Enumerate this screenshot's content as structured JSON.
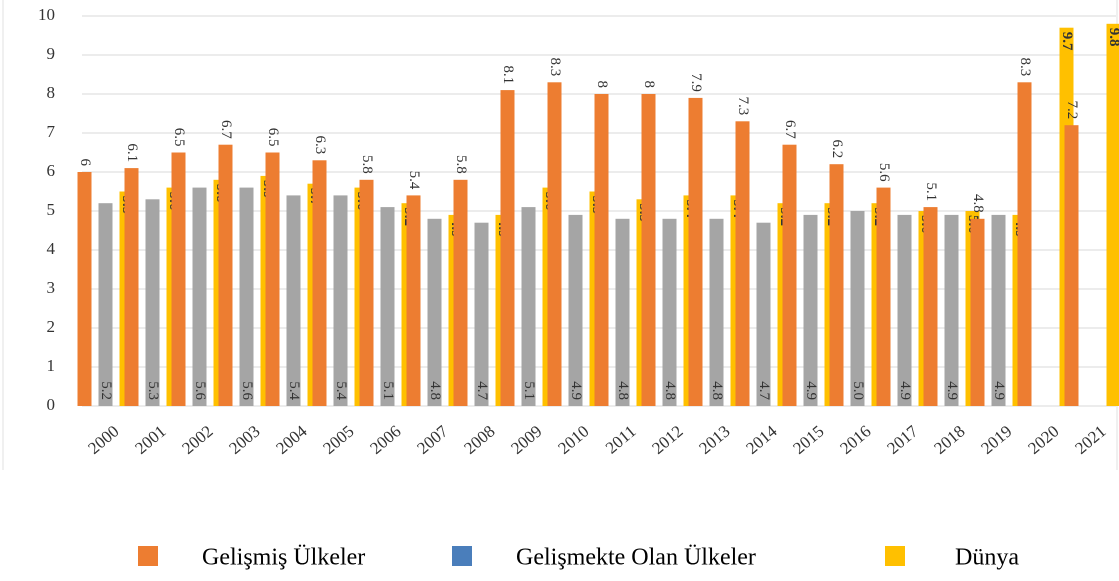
{
  "chart_data": {
    "type": "bar",
    "categories": [
      "2000",
      "2001",
      "2002",
      "2003",
      "2004",
      "2005",
      "2006",
      "2007",
      "2008",
      "2009",
      "2010",
      "2011",
      "2012",
      "2013",
      "2014",
      "2015",
      "2016",
      "2017",
      "2018",
      "2019",
      "2020",
      "2021"
    ],
    "series": [
      {
        "name": "Gelişmiş Ülkeler",
        "color": "#ed7d31",
        "values": [
          6,
          6.1,
          6.5,
          6.7,
          6.5,
          6.3,
          5.8,
          5.4,
          5.8,
          8.1,
          8.3,
          8,
          8,
          7.9,
          7.3,
          6.7,
          6.2,
          5.6,
          5.1,
          4.8,
          8.3,
          7.2
        ]
      },
      {
        "name": "Gelişmekte Olan Ülkeler",
        "color": "#a5a5a5",
        "legend_color": "#4a7ebb",
        "values": [
          5.2,
          5.3,
          5.6,
          5.6,
          5.4,
          5.4,
          5.1,
          4.8,
          4.7,
          5.1,
          4.9,
          4.8,
          4.8,
          4.8,
          4.7,
          4.9,
          5.0,
          4.9,
          4.9,
          4.9,
          null,
          null
        ],
        "value_labels": [
          "5.2",
          "5.3",
          "5.6",
          "5.6",
          "5.4",
          "5.4",
          "5.1",
          "4.8",
          "4.7",
          "5.1",
          "4.9",
          "4.8",
          "4.8",
          "4.8",
          "4.7",
          "4.9",
          "5.0",
          "4.9",
          "4.9",
          "4.9",
          null,
          null
        ]
      },
      {
        "name": "Dünya",
        "color": "#ffc000",
        "values": [
          5.5,
          5.6,
          5.8,
          5.9,
          5.7,
          5.6,
          5.2,
          4.9,
          4.9,
          5.6,
          5.5,
          5.3,
          5.4,
          5.4,
          5.2,
          5.2,
          5.2,
          5.0,
          5.0,
          4.9,
          9.7,
          9.8
        ],
        "value_labels": [
          "5.5",
          "5.6",
          "5.8",
          "5.9",
          "5.7",
          "5.6",
          "5.2",
          "4.9",
          "4.9",
          "5.6",
          "5.5",
          "5.3",
          "5.4",
          "5.4",
          "5.2",
          "5.2",
          "5.2",
          "5.0",
          "5.0",
          "4.9",
          "9.7",
          "9.8"
        ]
      }
    ],
    "ylim": [
      0,
      10
    ],
    "yticks": [
      0,
      1,
      2,
      3,
      4,
      5,
      6,
      7,
      8,
      9,
      10
    ],
    "grid": true
  }
}
